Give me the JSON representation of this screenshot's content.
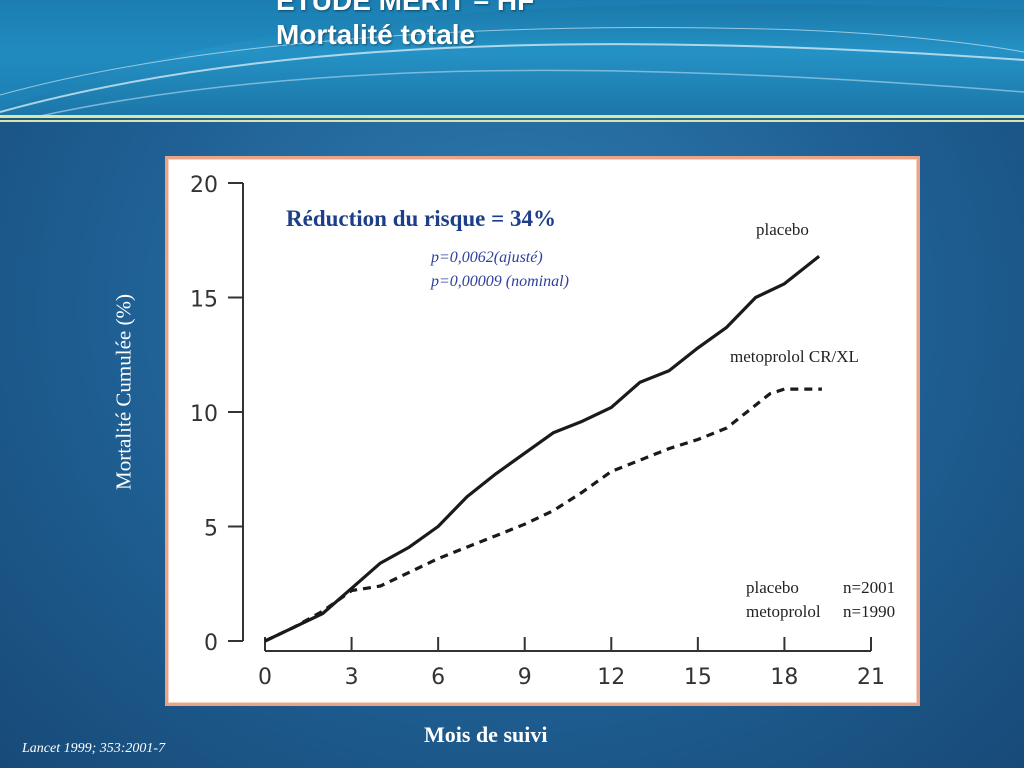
{
  "slide": {
    "title_line1": "ETUDE MERIT – HF",
    "title_line2": "Mortalité totale",
    "citation": "Lancet 1999; 353:2001-7"
  },
  "colors": {
    "background": "#1f5f93",
    "header": "#2592c5",
    "chart_frame_border": "#e9a488",
    "annotation_title": "#1d3f8a",
    "annotation_p": "#2f3fa0",
    "curve": "#1a1a1a"
  },
  "chart_data": {
    "type": "line",
    "xlabel": "Mois de suivi",
    "ylabel": "Mortalité Cumulée (%)",
    "xlim": [
      0,
      21
    ],
    "ylim": [
      0,
      20
    ],
    "x_ticks": [
      "0",
      "3",
      "6",
      "9",
      "12",
      "15",
      "18",
      "21"
    ],
    "y_ticks": [
      "0",
      "5",
      "10",
      "15",
      "20"
    ],
    "annotations": {
      "risk_reduction": "Réduction du risque = 34%",
      "p_adjusted": "p=0,0062(ajusté)",
      "p_nominal": "p=0,00009 (nominal)",
      "n_placebo_label": "placebo",
      "n_placebo_value": "n=2001",
      "n_metoprolol_label": "metoprolol",
      "n_metoprolol_value": "n=1990"
    },
    "series": [
      {
        "name": "placebo",
        "style": "solid",
        "x": [
          0,
          1,
          2,
          3,
          4,
          5,
          6,
          7,
          8,
          9,
          10,
          11,
          12,
          13,
          14,
          15,
          16,
          17,
          18,
          18.7,
          19.2
        ],
        "y": [
          0,
          0.6,
          1.2,
          2.3,
          3.4,
          4.1,
          5.0,
          6.3,
          7.3,
          8.2,
          9.1,
          9.6,
          10.2,
          11.3,
          11.8,
          12.8,
          13.7,
          15.0,
          15.6,
          16.3,
          16.8
        ]
      },
      {
        "name": "metoprolol CR/XL",
        "style": "dashed",
        "x": [
          0,
          1,
          2,
          3,
          4,
          5,
          6,
          7,
          8,
          9,
          10,
          11,
          12,
          13,
          14,
          15,
          16,
          17,
          17.5,
          18,
          19.3
        ],
        "y": [
          0,
          0.6,
          1.3,
          2.2,
          2.4,
          3.0,
          3.6,
          4.1,
          4.6,
          5.1,
          5.7,
          6.5,
          7.4,
          7.9,
          8.4,
          8.8,
          9.3,
          10.3,
          10.8,
          11.0,
          11.0
        ]
      }
    ]
  }
}
